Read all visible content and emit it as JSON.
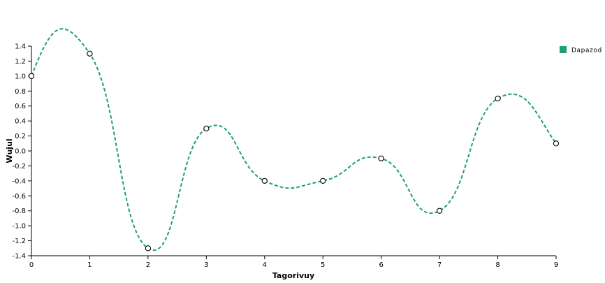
{
  "chart_data": {
    "type": "line",
    "title": "",
    "xlabel": "Tagorivuy",
    "ylabel": "Wujul",
    "x": [
      0,
      1,
      2,
      3,
      4,
      5,
      6,
      7,
      8,
      9
    ],
    "xlim": [
      0,
      9
    ],
    "ylim": [
      -1.4,
      1.4
    ],
    "x_ticks": [
      0,
      1,
      2,
      3,
      4,
      5,
      6,
      7,
      8,
      9
    ],
    "y_ticks": [
      -1.4,
      -1.2,
      -1.0,
      -0.8,
      -0.6,
      -0.4,
      -0.2,
      0.0,
      0.2,
      0.4,
      0.6,
      0.8,
      1.0,
      1.2,
      1.4
    ],
    "grid": false,
    "legend_position": "top-right",
    "series": [
      {
        "name": "Dapazod",
        "color": "#1f9e77",
        "line_style": "dashed",
        "interpolation": "smooth",
        "marker": "open-circle",
        "values": [
          1.0,
          1.3,
          -1.3,
          0.3,
          -0.4,
          -0.4,
          -0.1,
          -0.8,
          0.7,
          0.1
        ]
      }
    ]
  }
}
